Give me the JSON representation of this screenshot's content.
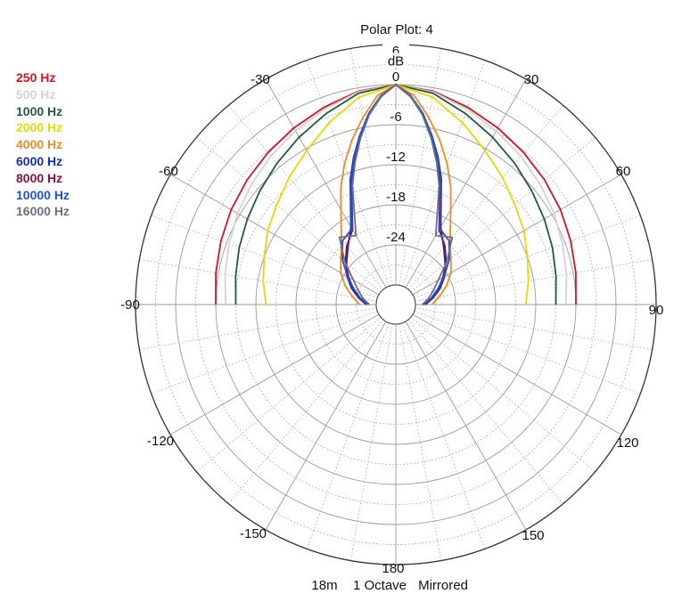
{
  "chart_data": {
    "type": "polar",
    "title": "Polar Plot: 4",
    "subtitle": [
      "18m",
      "1 Octave",
      "Mirrored"
    ],
    "radial_unit": "dB",
    "rlim": [
      -30,
      6
    ],
    "radial_ticks": [
      "6",
      "0",
      "-6",
      "-12",
      "-18",
      "-24"
    ],
    "angle_ticks": [
      "-30",
      "30",
      "-60",
      "60",
      "-90",
      "90",
      "-120",
      "120",
      "-150",
      "150",
      "180"
    ],
    "grid": true,
    "legend_position": "left",
    "series": [
      {
        "name": "250 Hz",
        "color": "#dd1020",
        "angles": [
          0,
          10,
          20,
          30,
          40,
          50,
          60,
          70,
          80,
          90
        ],
        "values": [
          0,
          -0.5,
          -1.5,
          -2.4,
          -3.2,
          -3.9,
          -4.5,
          -5.1,
          -5.6,
          -6
        ]
      },
      {
        "name": "500 Hz",
        "color": "#d3d3d3",
        "angles": [
          0,
          10,
          20,
          30,
          40,
          50,
          60,
          70,
          80,
          90
        ],
        "values": [
          0,
          -0.6,
          -1.8,
          -2.9,
          -3.9,
          -4.8,
          -5.6,
          -6.4,
          -7.0,
          -7.5
        ]
      },
      {
        "name": "1000 Hz",
        "color": "#1f5a3a",
        "angles": [
          0,
          10,
          20,
          30,
          40,
          50,
          60,
          70,
          80,
          90
        ],
        "values": [
          0,
          -0.8,
          -2.5,
          -4.0,
          -5.3,
          -6.4,
          -7.3,
          -8.0,
          -8.6,
          -9
        ]
      },
      {
        "name": "2000 Hz",
        "color": "#e8d800",
        "angles": [
          0,
          10,
          20,
          30,
          40,
          50,
          60,
          70,
          80,
          90
        ],
        "values": [
          0,
          -1.4,
          -3.9,
          -6.3,
          -8.1,
          -9.7,
          -10.8,
          -12.0,
          -12.8,
          -13.5
        ]
      },
      {
        "name": "4000 Hz",
        "color": "#f08a20",
        "angles": [
          0,
          5,
          10,
          15,
          20,
          25,
          30,
          40,
          50,
          60,
          70,
          80,
          90
        ],
        "values": [
          0,
          -1.5,
          -4.5,
          -7.5,
          -10.5,
          -13.5,
          -16.5,
          -20.3,
          -22.2,
          -23.4,
          -24.9,
          -26.4,
          -27.5
        ]
      },
      {
        "name": "6000 Hz",
        "color": "#1030b0",
        "angles": [
          0,
          4,
          8,
          12,
          16,
          20,
          30,
          40,
          50,
          60,
          70,
          80,
          90
        ],
        "values": [
          0,
          -1.6,
          -4.0,
          -7.0,
          -10.0,
          -13.0,
          -19.5,
          -21.8,
          -23.3,
          -24.5,
          -25.9,
          -27.3,
          -28.5
        ]
      },
      {
        "name": "8000 Hz",
        "color": "#8a1048",
        "angles": [
          0,
          4,
          8,
          12,
          16,
          20,
          30,
          40,
          50,
          60,
          70,
          80,
          90
        ],
        "values": [
          0,
          -1.7,
          -4.2,
          -7.3,
          -10.4,
          -13.6,
          -20.0,
          -21.5,
          -23.1,
          -24.8,
          -26.2,
          -27.5,
          -28.5
        ]
      },
      {
        "name": "10000 Hz",
        "color": "#2050d8",
        "angles": [
          0,
          4,
          8,
          12,
          16,
          20,
          30,
          40,
          50,
          60,
          70,
          80,
          90
        ],
        "values": [
          0,
          -1.5,
          -4.0,
          -7.1,
          -10.2,
          -13.3,
          -19.8,
          -20.5,
          -22.5,
          -24.6,
          -26.3,
          -27.6,
          -28.8
        ]
      },
      {
        "name": "16000 Hz",
        "color": "#6a7080",
        "angles": [
          0,
          4,
          8,
          12,
          16,
          20,
          30,
          40,
          50,
          60,
          70,
          80,
          90
        ],
        "values": [
          0,
          -1.6,
          -4.3,
          -7.5,
          -10.8,
          -14.0,
          -21.0,
          -19.8,
          -23.0,
          -25.6,
          -27.0,
          -28.0,
          -29.0
        ]
      }
    ]
  }
}
